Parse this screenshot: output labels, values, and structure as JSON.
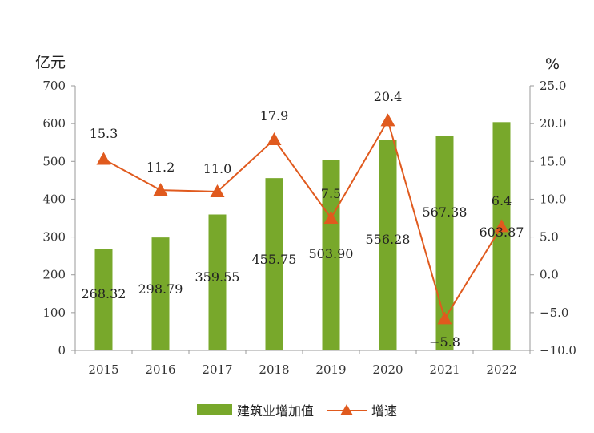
{
  "chart_data": {
    "type": "bar+line",
    "categories": [
      "2015",
      "2016",
      "2017",
      "2018",
      "2019",
      "2020",
      "2021",
      "2022"
    ],
    "series": [
      {
        "name": "建筑业增加值",
        "type": "bar",
        "axis": "left",
        "values": [
          268.32,
          298.79,
          359.55,
          455.75,
          503.9,
          556.28,
          567.38,
          603.87
        ],
        "labels": [
          "268.32",
          "298.79",
          "359.55",
          "455.75",
          "503.90",
          "556.28",
          "567.38",
          "603.87"
        ],
        "color": "#78a82b"
      },
      {
        "name": "增速",
        "type": "line",
        "axis": "right",
        "values": [
          15.3,
          11.2,
          11.0,
          17.9,
          7.5,
          20.4,
          -5.8,
          6.4
        ],
        "labels": [
          "15.3",
          "11.2",
          "11.0",
          "17.9",
          "7.5",
          "20.4",
          "−5.8",
          "6.4"
        ],
        "color": "#e05a1e"
      }
    ],
    "y_left": {
      "unit": "亿元",
      "range": [
        0,
        700
      ],
      "ticks": [
        "0",
        "100",
        "200",
        "300",
        "400",
        "500",
        "600",
        "700"
      ]
    },
    "y_right": {
      "unit": "%",
      "range": [
        -10,
        25
      ],
      "ticks": [
        "−10.0",
        "−5.0",
        "0.0",
        "5.0",
        "10.0",
        "15.0",
        "20.0",
        "25.0"
      ]
    },
    "grid": false,
    "legend_position": "bottom"
  }
}
